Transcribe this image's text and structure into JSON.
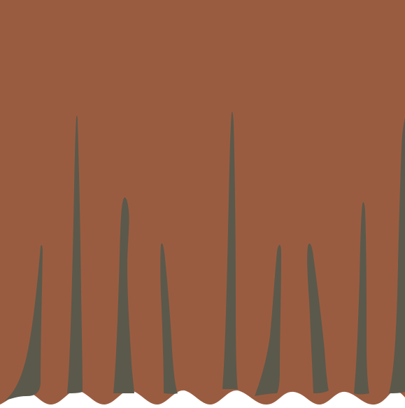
{
  "colors": {
    "background": "#9a5c40",
    "spike": "#5b594b",
    "base": "#ffffff"
  }
}
